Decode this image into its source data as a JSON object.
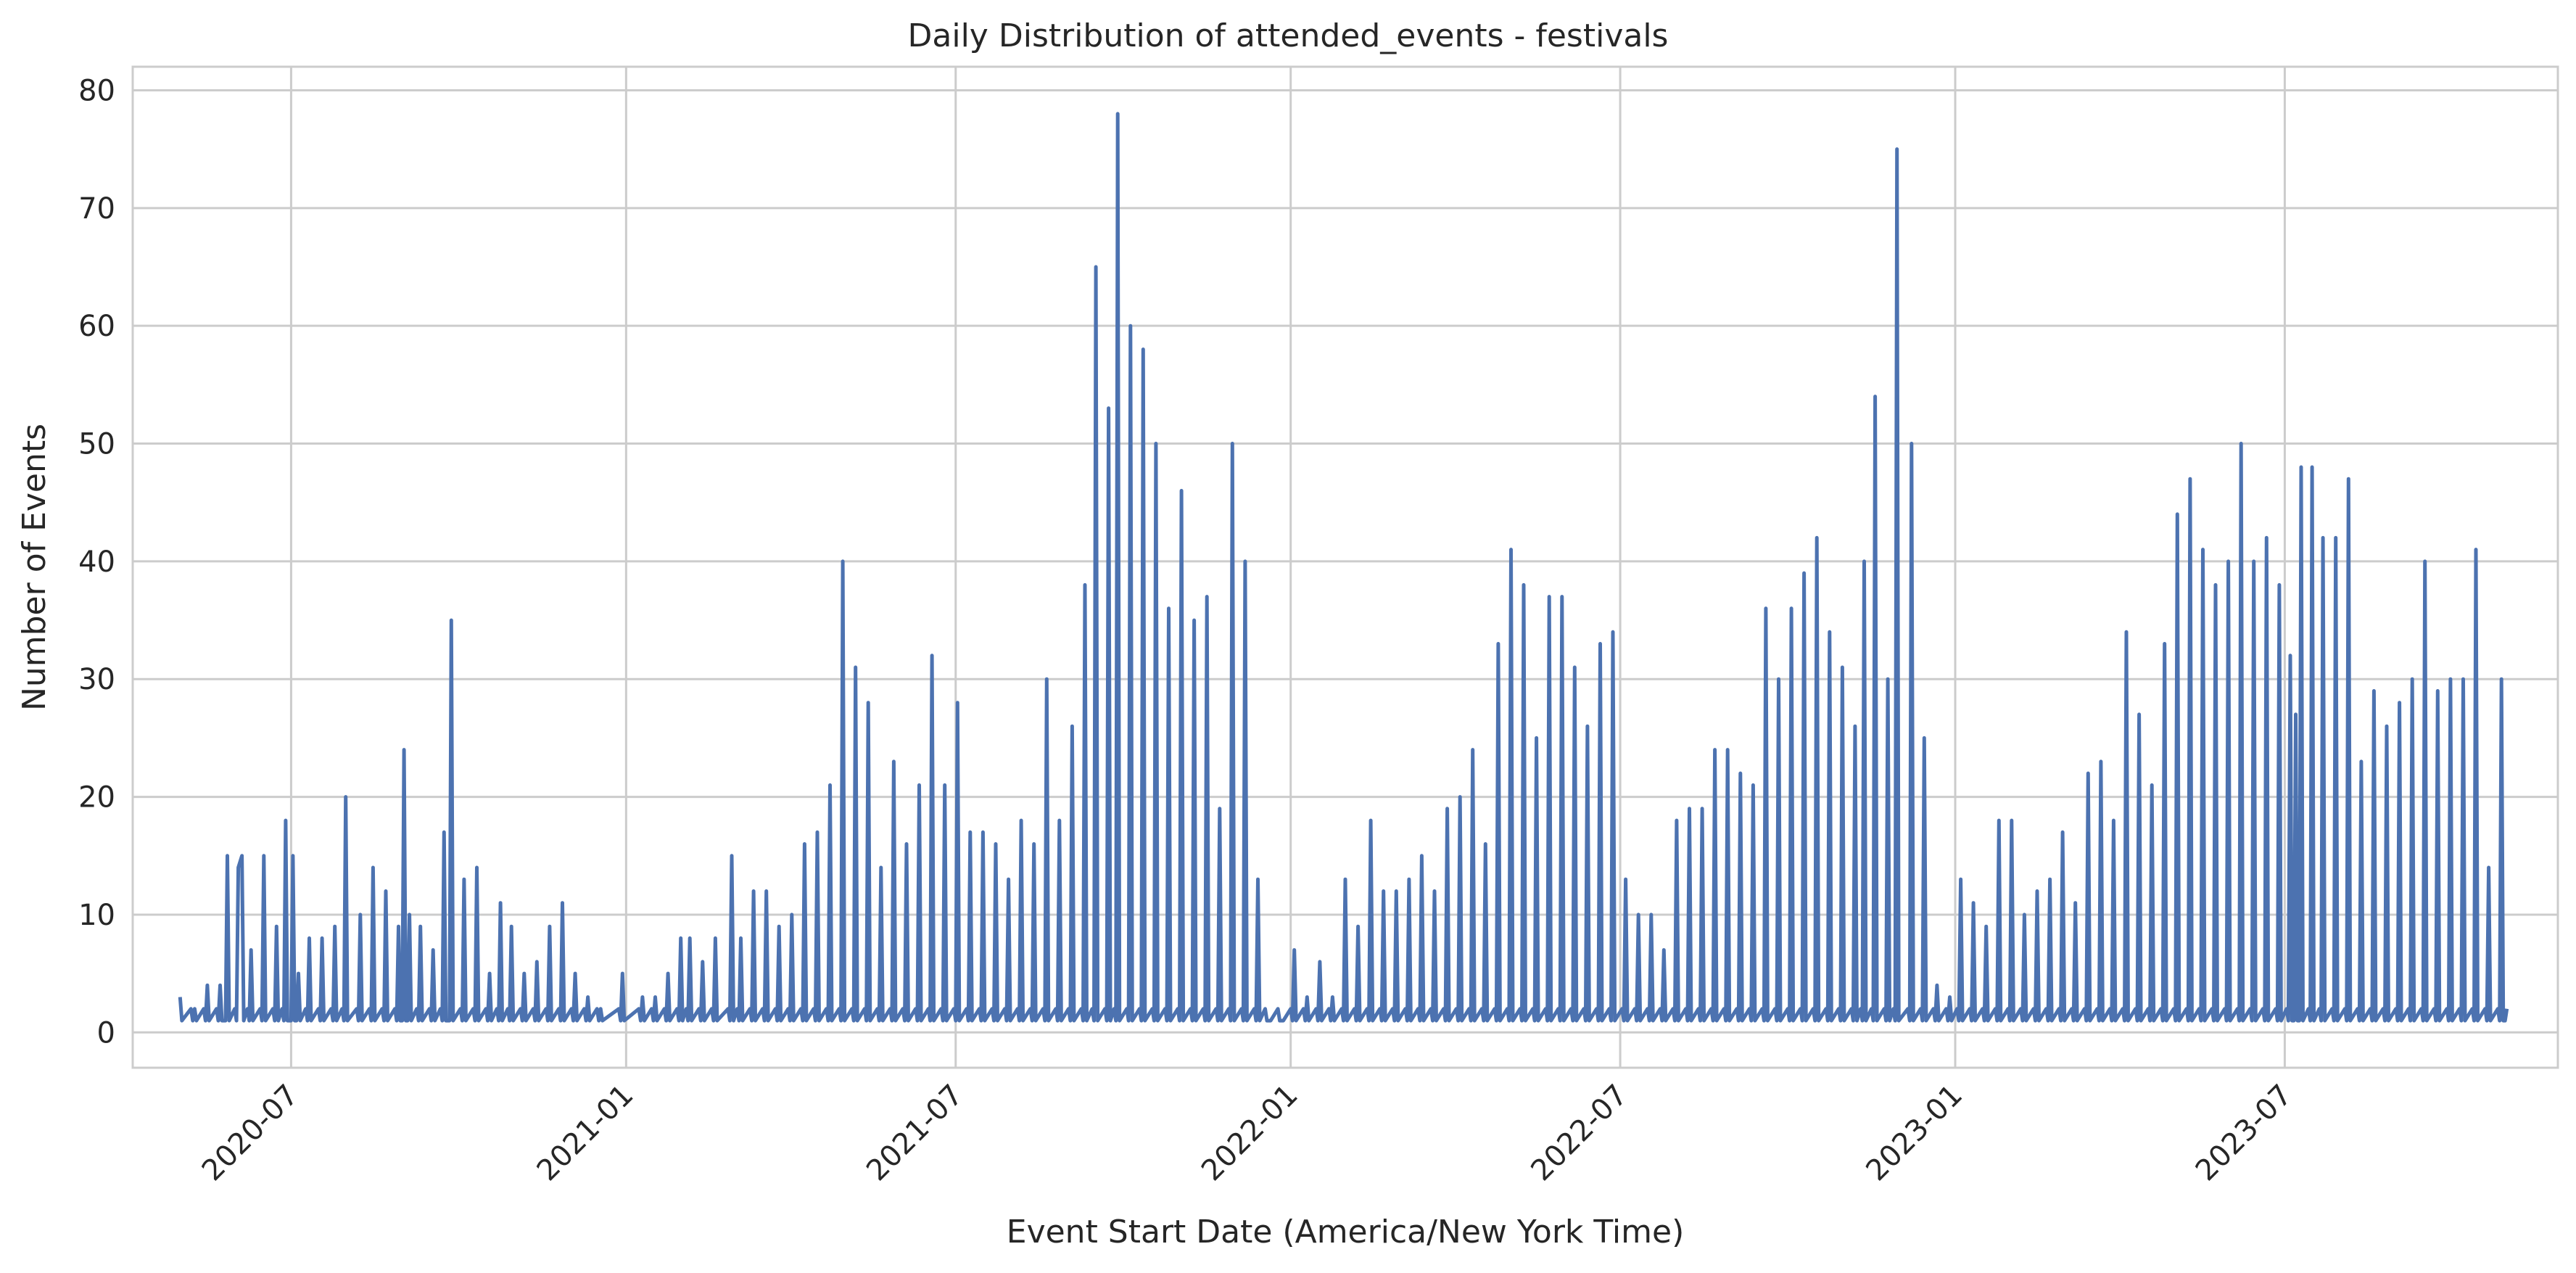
{
  "chart_data": {
    "type": "line",
    "title": "Daily Distribution of attended_events - festivals",
    "xlabel": "Event Start Date (America/New York Time)",
    "ylabel": "Number of Events",
    "xlim": [
      "2020-04-05",
      "2023-11-28"
    ],
    "ylim": [
      -3,
      82
    ],
    "x_ticks": [
      "2020-07",
      "2021-01",
      "2021-07",
      "2022-01",
      "2022-07",
      "2023-01",
      "2023-07"
    ],
    "y_ticks": [
      0,
      10,
      20,
      30,
      40,
      50,
      60,
      70,
      80
    ],
    "grid": true,
    "line_color": "#4c72b0",
    "series": [
      {
        "x_start": "2020-05-01",
        "x_end": "2023-10-31",
        "peaks": [
          [
            "2020-05-01",
            3
          ],
          [
            "2020-05-09",
            2
          ],
          [
            "2020-05-16",
            4
          ],
          [
            "2020-05-23",
            4
          ],
          [
            "2020-05-27",
            15
          ],
          [
            "2020-06-02",
            14
          ],
          [
            "2020-06-04",
            15
          ],
          [
            "2020-06-09",
            7
          ],
          [
            "2020-06-16",
            15
          ],
          [
            "2020-06-23",
            9
          ],
          [
            "2020-06-28",
            18
          ],
          [
            "2020-07-02",
            15
          ],
          [
            "2020-07-05",
            5
          ],
          [
            "2020-07-11",
            8
          ],
          [
            "2020-07-18",
            8
          ],
          [
            "2020-07-25",
            9
          ],
          [
            "2020-07-31",
            20
          ],
          [
            "2020-08-08",
            10
          ],
          [
            "2020-08-15",
            14
          ],
          [
            "2020-08-22",
            12
          ],
          [
            "2020-08-29",
            9
          ],
          [
            "2020-09-01",
            24
          ],
          [
            "2020-09-04",
            10
          ],
          [
            "2020-09-10",
            9
          ],
          [
            "2020-09-17",
            7
          ],
          [
            "2020-09-23",
            17
          ],
          [
            "2020-09-27",
            35
          ],
          [
            "2020-10-04",
            13
          ],
          [
            "2020-10-11",
            14
          ],
          [
            "2020-10-18",
            5
          ],
          [
            "2020-10-24",
            11
          ],
          [
            "2020-10-30",
            9
          ],
          [
            "2020-11-06",
            5
          ],
          [
            "2020-11-13",
            6
          ],
          [
            "2020-11-20",
            9
          ],
          [
            "2020-11-27",
            11
          ],
          [
            "2020-12-04",
            5
          ],
          [
            "2020-12-11",
            3
          ],
          [
            "2020-12-18",
            2
          ],
          [
            "2020-12-30",
            5
          ],
          [
            "2021-01-10",
            3
          ],
          [
            "2021-01-17",
            3
          ],
          [
            "2021-01-24",
            5
          ],
          [
            "2021-01-31",
            8
          ],
          [
            "2021-02-05",
            8
          ],
          [
            "2021-02-12",
            6
          ],
          [
            "2021-02-19",
            8
          ],
          [
            "2021-02-28",
            15
          ],
          [
            "2021-03-05",
            8
          ],
          [
            "2021-03-12",
            12
          ],
          [
            "2021-03-19",
            12
          ],
          [
            "2021-03-26",
            9
          ],
          [
            "2021-04-02",
            10
          ],
          [
            "2021-04-09",
            16
          ],
          [
            "2021-04-16",
            17
          ],
          [
            "2021-04-23",
            21
          ],
          [
            "2021-04-30",
            40
          ],
          [
            "2021-05-07",
            31
          ],
          [
            "2021-05-14",
            28
          ],
          [
            "2021-05-21",
            14
          ],
          [
            "2021-05-28",
            23
          ],
          [
            "2021-06-04",
            16
          ],
          [
            "2021-06-11",
            21
          ],
          [
            "2021-06-18",
            32
          ],
          [
            "2021-06-25",
            21
          ],
          [
            "2021-07-02",
            28
          ],
          [
            "2021-07-09",
            17
          ],
          [
            "2021-07-16",
            17
          ],
          [
            "2021-07-23",
            16
          ],
          [
            "2021-07-30",
            13
          ],
          [
            "2021-08-06",
            18
          ],
          [
            "2021-08-13",
            16
          ],
          [
            "2021-08-20",
            30
          ],
          [
            "2021-08-27",
            18
          ],
          [
            "2021-09-03",
            26
          ],
          [
            "2021-09-10",
            38
          ],
          [
            "2021-09-16",
            65
          ],
          [
            "2021-09-23",
            53
          ],
          [
            "2021-09-28",
            78
          ],
          [
            "2021-10-05",
            60
          ],
          [
            "2021-10-12",
            58
          ],
          [
            "2021-10-19",
            50
          ],
          [
            "2021-10-26",
            36
          ],
          [
            "2021-11-02",
            46
          ],
          [
            "2021-11-09",
            35
          ],
          [
            "2021-11-16",
            37
          ],
          [
            "2021-11-23",
            19
          ],
          [
            "2021-11-30",
            50
          ],
          [
            "2021-12-07",
            40
          ],
          [
            "2021-12-14",
            13
          ],
          [
            "2021-12-20",
            1
          ],
          [
            "2021-12-27",
            1
          ],
          [
            "2022-01-03",
            7
          ],
          [
            "2022-01-10",
            3
          ],
          [
            "2022-01-17",
            6
          ],
          [
            "2022-01-24",
            3
          ],
          [
            "2022-01-31",
            13
          ],
          [
            "2022-02-07",
            9
          ],
          [
            "2022-02-14",
            18
          ],
          [
            "2022-02-21",
            12
          ],
          [
            "2022-02-28",
            12
          ],
          [
            "2022-03-07",
            13
          ],
          [
            "2022-03-14",
            15
          ],
          [
            "2022-03-21",
            12
          ],
          [
            "2022-03-28",
            19
          ],
          [
            "2022-04-04",
            20
          ],
          [
            "2022-04-11",
            24
          ],
          [
            "2022-04-18",
            16
          ],
          [
            "2022-04-25",
            33
          ],
          [
            "2022-05-02",
            41
          ],
          [
            "2022-05-09",
            38
          ],
          [
            "2022-05-16",
            25
          ],
          [
            "2022-05-23",
            37
          ],
          [
            "2022-05-30",
            37
          ],
          [
            "2022-06-06",
            31
          ],
          [
            "2022-06-13",
            26
          ],
          [
            "2022-06-20",
            33
          ],
          [
            "2022-06-27",
            34
          ],
          [
            "2022-07-04",
            13
          ],
          [
            "2022-07-11",
            10
          ],
          [
            "2022-07-18",
            10
          ],
          [
            "2022-07-25",
            7
          ],
          [
            "2022-08-01",
            18
          ],
          [
            "2022-08-08",
            19
          ],
          [
            "2022-08-15",
            19
          ],
          [
            "2022-08-22",
            24
          ],
          [
            "2022-08-29",
            24
          ],
          [
            "2022-09-05",
            22
          ],
          [
            "2022-09-12",
            21
          ],
          [
            "2022-09-19",
            36
          ],
          [
            "2022-09-26",
            30
          ],
          [
            "2022-10-03",
            36
          ],
          [
            "2022-10-10",
            39
          ],
          [
            "2022-10-17",
            42
          ],
          [
            "2022-10-24",
            34
          ],
          [
            "2022-10-31",
            31
          ],
          [
            "2022-11-07",
            26
          ],
          [
            "2022-11-12",
            40
          ],
          [
            "2022-11-18",
            54
          ],
          [
            "2022-11-25",
            30
          ],
          [
            "2022-11-30",
            75
          ],
          [
            "2022-12-08",
            50
          ],
          [
            "2022-12-15",
            25
          ],
          [
            "2022-12-22",
            4
          ],
          [
            "2022-12-29",
            3
          ],
          [
            "2023-01-04",
            13
          ],
          [
            "2023-01-11",
            11
          ],
          [
            "2023-01-18",
            9
          ],
          [
            "2023-01-25",
            18
          ],
          [
            "2023-02-01",
            18
          ],
          [
            "2023-02-08",
            10
          ],
          [
            "2023-02-15",
            12
          ],
          [
            "2023-02-22",
            13
          ],
          [
            "2023-03-01",
            17
          ],
          [
            "2023-03-08",
            11
          ],
          [
            "2023-03-15",
            22
          ],
          [
            "2023-03-22",
            23
          ],
          [
            "2023-03-29",
            18
          ],
          [
            "2023-04-05",
            34
          ],
          [
            "2023-04-12",
            27
          ],
          [
            "2023-04-19",
            21
          ],
          [
            "2023-04-26",
            33
          ],
          [
            "2023-05-03",
            44
          ],
          [
            "2023-05-10",
            47
          ],
          [
            "2023-05-17",
            41
          ],
          [
            "2023-05-24",
            38
          ],
          [
            "2023-05-31",
            40
          ],
          [
            "2023-06-07",
            50
          ],
          [
            "2023-06-14",
            40
          ],
          [
            "2023-06-21",
            42
          ],
          [
            "2023-06-28",
            38
          ],
          [
            "2023-07-04",
            32
          ],
          [
            "2023-07-07",
            27
          ],
          [
            "2023-07-10",
            48
          ],
          [
            "2023-07-16",
            48
          ],
          [
            "2023-07-22",
            42
          ],
          [
            "2023-07-29",
            42
          ],
          [
            "2023-08-05",
            47
          ],
          [
            "2023-08-12",
            23
          ],
          [
            "2023-08-19",
            29
          ],
          [
            "2023-08-26",
            26
          ],
          [
            "2023-09-02",
            28
          ],
          [
            "2023-09-09",
            30
          ],
          [
            "2023-09-16",
            40
          ],
          [
            "2023-09-23",
            29
          ],
          [
            "2023-09-30",
            30
          ],
          [
            "2023-10-07",
            30
          ],
          [
            "2023-10-14",
            41
          ],
          [
            "2023-10-21",
            14
          ],
          [
            "2023-10-28",
            30
          ],
          [
            "2023-10-31",
            2
          ]
        ],
        "baseline": 1
      }
    ]
  }
}
